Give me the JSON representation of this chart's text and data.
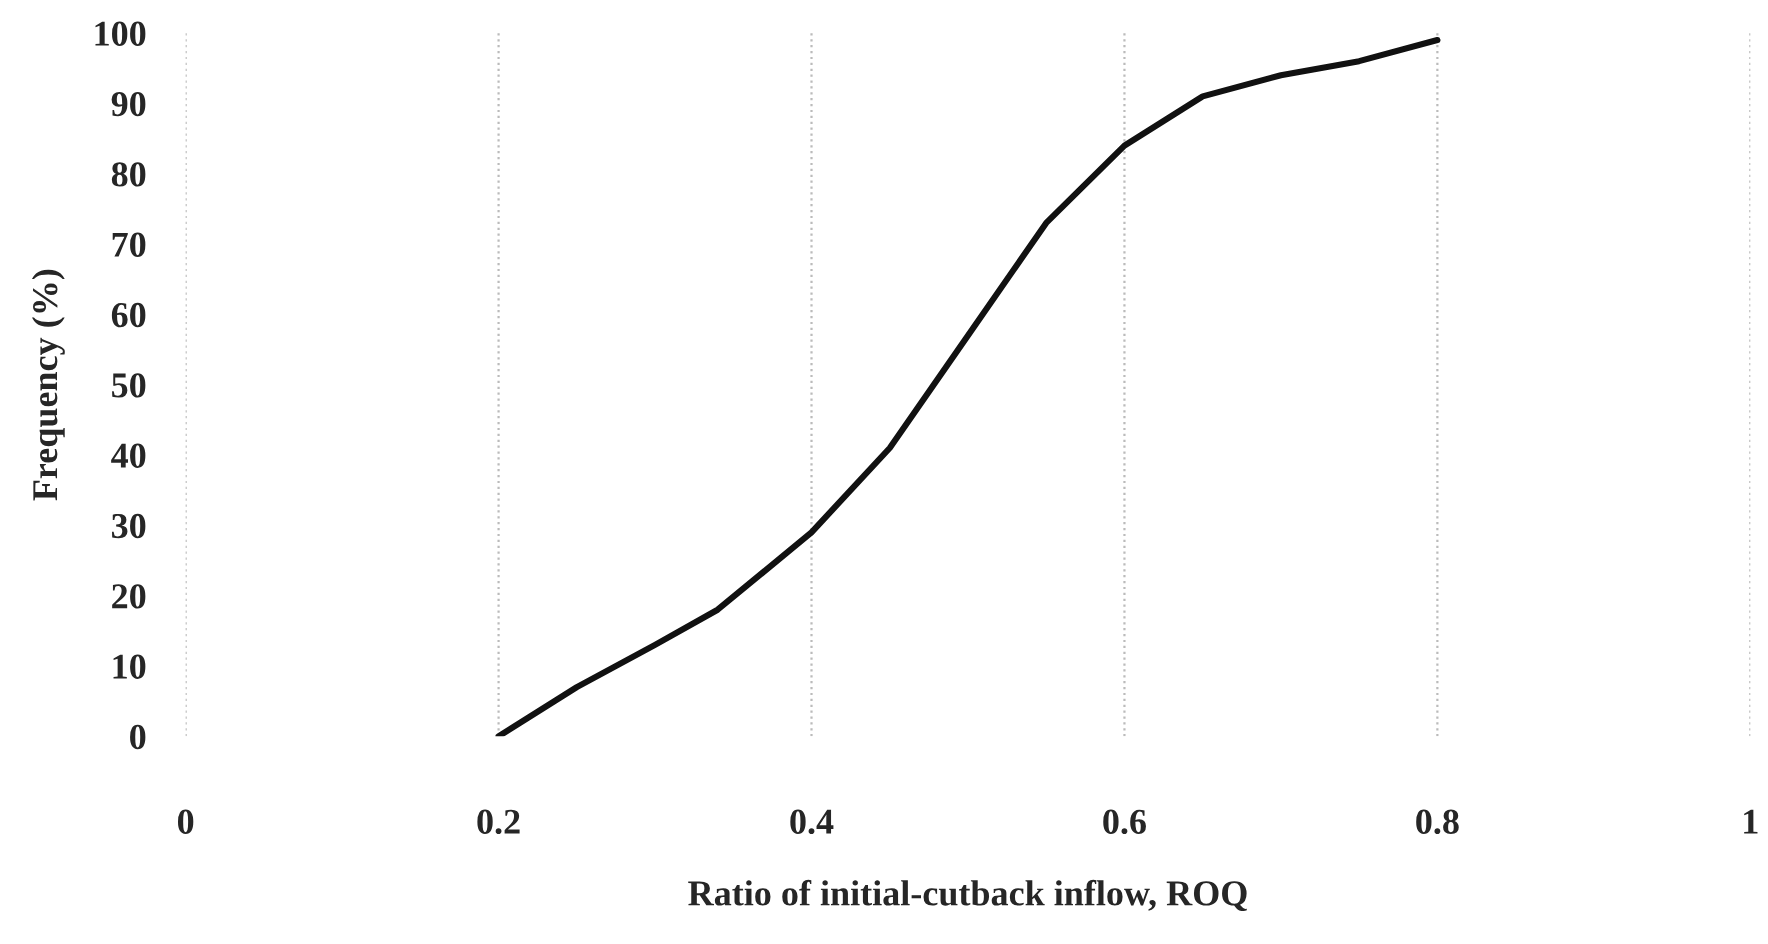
{
  "chart_data": {
    "type": "line",
    "xlabel": "Ratio of initial-cutback inflow, ROQ",
    "ylabel": "Frequency (%)",
    "x": [
      0.2,
      0.25,
      0.3,
      0.34,
      0.4,
      0.45,
      0.5,
      0.55,
      0.6,
      0.65,
      0.7,
      0.75,
      0.8
    ],
    "series": [
      {
        "color": "#111111",
        "values": [
          0,
          7,
          13,
          18,
          29,
          41,
          57,
          73,
          84,
          91,
          94,
          96,
          99
        ]
      }
    ],
    "xlim": [
      0,
      1
    ],
    "ylim": [
      0,
      100
    ],
    "xticks": [
      0,
      0.2,
      0.4,
      0.6,
      0.8,
      1
    ],
    "yticks": [
      0,
      10,
      20,
      30,
      40,
      50,
      60,
      70,
      80,
      90,
      100
    ],
    "grid": "x",
    "marker": "none",
    "line_style": "solid"
  }
}
